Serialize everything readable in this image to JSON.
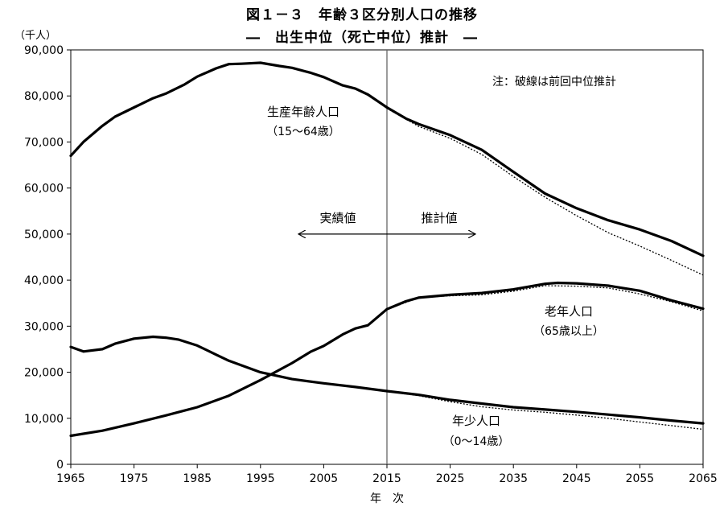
{
  "title": "図１－３　年齢３区分別人口の推移",
  "subtitle": "―　出生中位（死亡中位）推計　―",
  "chart_data": {
    "type": "line",
    "ylabel": "（千人）",
    "xlabel": "年　次",
    "xlim": [
      1965,
      2065
    ],
    "ylim": [
      0,
      90000
    ],
    "xticks": [
      "1965",
      "1975",
      "1985",
      "1995",
      "2005",
      "2015",
      "2025",
      "2035",
      "2045",
      "2055",
      "2065"
    ],
    "yticks": [
      "0",
      "10,000",
      "20,000",
      "30,000",
      "40,000",
      "50,000",
      "60,000",
      "70,000",
      "80,000",
      "90,000"
    ],
    "note": "注：破線は前回中位推計",
    "divider_year": 2015,
    "arrow_left_label": "実績値",
    "arrow_right_label": "推計値",
    "series": [
      {
        "name": "生産年齢人口",
        "label_line1": "生産年齢人口",
        "label_line2": "（15～64歳）",
        "x": [
          1965,
          1967,
          1970,
          1972,
          1975,
          1978,
          1980,
          1983,
          1985,
          1988,
          1990,
          1992,
          1995,
          1998,
          2000,
          2003,
          2005,
          2008,
          2010,
          2012,
          2015,
          2018,
          2020,
          2025,
          2030,
          2035,
          2040,
          2045,
          2050,
          2055,
          2060,
          2065
        ],
        "values": [
          67000,
          70000,
          73500,
          75500,
          77500,
          79500,
          80500,
          82500,
          84200,
          86000,
          86900,
          87000,
          87200,
          86500,
          86100,
          85000,
          84100,
          82300,
          81600,
          80300,
          77500,
          75100,
          73900,
          71500,
          68300,
          63500,
          58800,
          55600,
          53000,
          51000,
          48500,
          45300
        ],
        "prev_x": [
          2015,
          2020,
          2025,
          2030,
          2035,
          2040,
          2045,
          2050,
          2055,
          2060,
          2065
        ],
        "prev_values": [
          77300,
          73400,
          70800,
          67300,
          62500,
          58000,
          54000,
          50300,
          47400,
          44300,
          41100
        ]
      },
      {
        "name": "老年人口",
        "label_line1": "老年人口",
        "label_line2": "（65歳以上）",
        "x": [
          1965,
          1970,
          1975,
          1980,
          1985,
          1990,
          1995,
          2000,
          2003,
          2005,
          2008,
          2010,
          2012,
          2015,
          2018,
          2020,
          2025,
          2030,
          2035,
          2040,
          2042,
          2045,
          2050,
          2055,
          2060,
          2065
        ],
        "values": [
          6200,
          7300,
          8900,
          10600,
          12400,
          14900,
          18300,
          22000,
          24500,
          25700,
          28200,
          29500,
          30200,
          33700,
          35400,
          36200,
          36800,
          37200,
          38000,
          39200,
          39400,
          39300,
          38800,
          37700,
          35600,
          33800
        ],
        "prev_x": [
          2015,
          2020,
          2025,
          2030,
          2035,
          2040,
          2045,
          2050,
          2055,
          2060,
          2065
        ],
        "prev_values": [
          33600,
          36200,
          36600,
          36800,
          37600,
          38800,
          38700,
          38300,
          37000,
          35300,
          33300
        ]
      },
      {
        "name": "年少人口",
        "label_line1": "年少人口",
        "label_line2": "（0～14歳）",
        "x": [
          1965,
          1967,
          1970,
          1972,
          1975,
          1978,
          1980,
          1982,
          1985,
          1988,
          1990,
          1995,
          2000,
          2005,
          2010,
          2015,
          2020,
          2025,
          2030,
          2035,
          2040,
          2045,
          2050,
          2055,
          2060,
          2065
        ],
        "values": [
          25500,
          24500,
          25000,
          26200,
          27300,
          27700,
          27500,
          27100,
          25800,
          23800,
          22500,
          20000,
          18500,
          17600,
          16800,
          15900,
          15100,
          14000,
          13200,
          12400,
          11900,
          11400,
          10800,
          10200,
          9500,
          8900
        ],
        "prev_x": [
          2015,
          2020,
          2025,
          2030,
          2035,
          2040,
          2045,
          2050,
          2055,
          2060,
          2065
        ],
        "prev_values": [
          15800,
          14900,
          13600,
          12500,
          11800,
          11300,
          10700,
          10000,
          9200,
          8400,
          7600
        ]
      }
    ]
  }
}
